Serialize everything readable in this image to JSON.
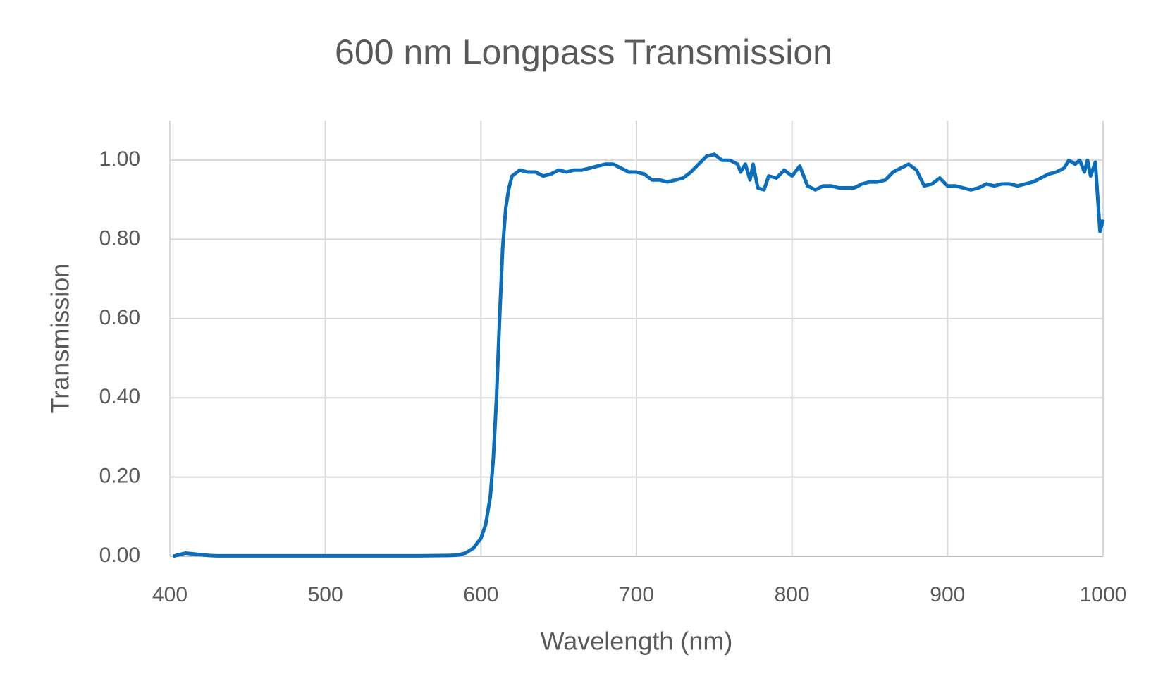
{
  "chart_data": {
    "type": "line",
    "title": "600 nm Longpass Transmission",
    "x_label": "Wavelength (nm)",
    "y_label": "Transmission",
    "x": [
      402,
      405,
      410,
      415,
      420,
      425,
      430,
      440,
      460,
      480,
      500,
      520,
      540,
      560,
      580,
      585,
      590,
      595,
      600,
      603,
      606,
      608,
      610,
      612,
      614,
      616,
      618,
      620,
      625,
      630,
      635,
      640,
      645,
      650,
      655,
      660,
      665,
      670,
      675,
      680,
      685,
      690,
      695,
      700,
      705,
      710,
      715,
      720,
      725,
      730,
      735,
      740,
      745,
      750,
      755,
      760,
      765,
      767,
      770,
      773,
      775,
      778,
      782,
      785,
      790,
      795,
      800,
      805,
      810,
      815,
      820,
      825,
      830,
      835,
      840,
      845,
      850,
      855,
      860,
      865,
      870,
      875,
      880,
      885,
      890,
      895,
      900,
      905,
      910,
      915,
      920,
      925,
      930,
      935,
      940,
      945,
      950,
      955,
      960,
      965,
      970,
      975,
      978,
      982,
      985,
      988,
      990,
      992,
      995,
      998,
      1000
    ],
    "series": [
      {
        "name": "Transmission",
        "color": "#0a6ebd",
        "values": [
          0,
          0.003,
          0.008,
          0.006,
          0.004,
          0.002,
          0.001,
          0.001,
          0.001,
          0.001,
          0.001,
          0.001,
          0.001,
          0.001,
          0.002,
          0.003,
          0.008,
          0.02,
          0.045,
          0.08,
          0.15,
          0.25,
          0.4,
          0.6,
          0.78,
          0.88,
          0.93,
          0.96,
          0.975,
          0.97,
          0.97,
          0.96,
          0.965,
          0.975,
          0.97,
          0.975,
          0.975,
          0.98,
          0.985,
          0.99,
          0.99,
          0.98,
          0.97,
          0.97,
          0.965,
          0.95,
          0.95,
          0.945,
          0.95,
          0.955,
          0.97,
          0.99,
          1.01,
          1.015,
          1.0,
          1.0,
          0.99,
          0.97,
          0.99,
          0.95,
          0.99,
          0.93,
          0.925,
          0.96,
          0.955,
          0.975,
          0.96,
          0.985,
          0.935,
          0.925,
          0.935,
          0.935,
          0.93,
          0.93,
          0.93,
          0.94,
          0.945,
          0.945,
          0.95,
          0.97,
          0.98,
          0.99,
          0.975,
          0.935,
          0.94,
          0.955,
          0.935,
          0.935,
          0.93,
          0.925,
          0.93,
          0.94,
          0.935,
          0.94,
          0.94,
          0.935,
          0.94,
          0.945,
          0.955,
          0.965,
          0.97,
          0.98,
          1.0,
          0.99,
          1.0,
          0.97,
          1.0,
          0.96,
          0.995,
          0.82,
          0.85
        ]
      }
    ],
    "xlim": [
      400,
      1000
    ],
    "xticks": [
      400,
      500,
      600,
      700,
      800,
      900,
      1000
    ],
    "ylim": [
      0,
      1.1
    ],
    "yticks": [
      {
        "value": 0,
        "label": "0.00"
      },
      {
        "value": 0.2,
        "label": "0.20"
      },
      {
        "value": 0.4,
        "label": "0.40"
      },
      {
        "value": 0.6,
        "label": "0.60"
      },
      {
        "value": 0.8,
        "label": "0.80"
      },
      {
        "value": 1.0,
        "label": "1.00"
      }
    ],
    "grid": true
  }
}
